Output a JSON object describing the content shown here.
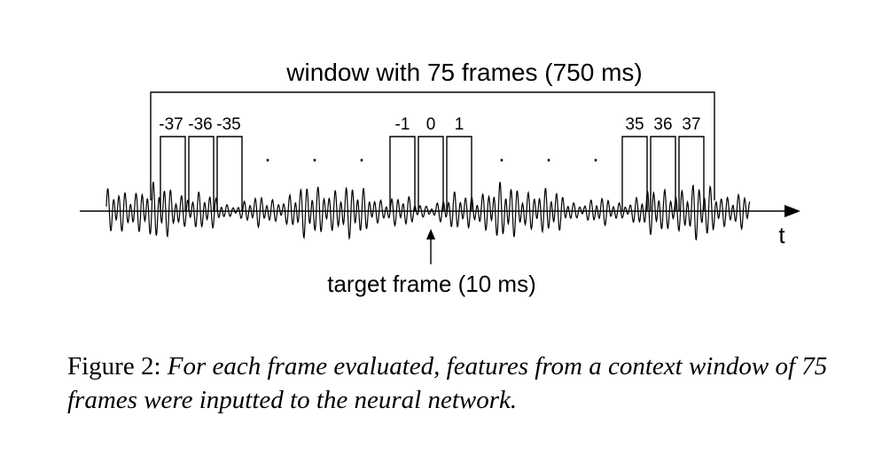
{
  "window_label": "window with 75 frames (750 ms)",
  "frame_labels": {
    "left": [
      "-37",
      "-36",
      "-35"
    ],
    "center": [
      "-1",
      "0",
      "1"
    ],
    "right": [
      "35",
      "36",
      "37"
    ]
  },
  "ellipsis_dots": ".",
  "axis_label": "t",
  "target_label": "target frame (10 ms)",
  "caption": {
    "prefix": "Figure 2:",
    "body": "For each frame evaluated, features from a context window of 75 frames were inputted to the neural network."
  }
}
